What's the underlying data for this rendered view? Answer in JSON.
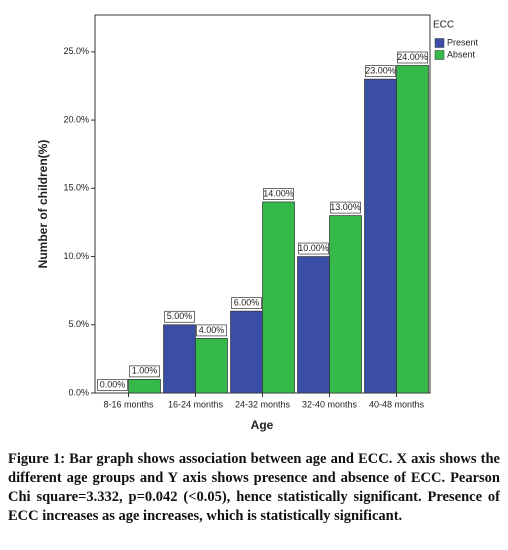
{
  "chart_data": {
    "type": "bar",
    "x_label": "Age",
    "y_label": "Number of children(%)",
    "categories": [
      "8-16 months",
      "16-24 months",
      "24-32 months",
      "32-40 months",
      "40-48 months"
    ],
    "series": [
      {
        "name": "Present",
        "color": "#3b4ea6",
        "values": [
          0,
          5,
          6,
          10,
          23
        ],
        "value_labels": [
          "0.00%",
          "5.00%",
          "6.00%",
          "10.00%",
          "23.00%"
        ]
      },
      {
        "name": "Absent",
        "color": "#35b94a",
        "values": [
          1,
          4,
          14,
          13,
          24
        ],
        "value_labels": [
          "1.00%",
          "4.00%",
          "14.00%",
          "13.00%",
          "24.00%"
        ]
      }
    ],
    "legend_title": "ECC",
    "legend_position": "right",
    "ylim": [
      0,
      27.7
    ],
    "yticks": [
      {
        "value": 0,
        "label": "0.0%"
      },
      {
        "value": 5,
        "label": "5.0%"
      },
      {
        "value": 10,
        "label": "10.0%"
      },
      {
        "value": 15,
        "label": "15.0%"
      },
      {
        "value": 20,
        "label": "20.0%"
      },
      {
        "value": 25,
        "label": "25.0%"
      }
    ],
    "grid": false
  },
  "caption": "Figure 1: Bar graph shows association between age and ECC. X axis shows the different age groups and Y axis shows presence and absence of ECC. Pearson Chi square=3.332, p=0.042 (<0.05), hence statistically significant. Presence of ECC increases as age increases, which is statistically significant."
}
